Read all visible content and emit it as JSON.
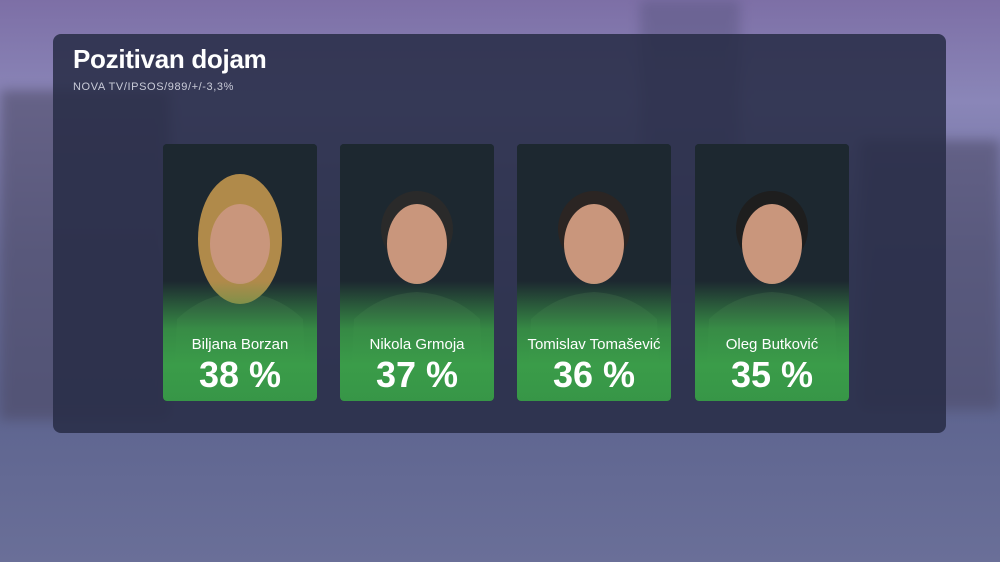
{
  "header": {
    "title": "Pozitivan dojam",
    "subtitle": "NOVA TV/IPSOS/989/+/-3,3%"
  },
  "colors": {
    "accent_green": "#3a9c49",
    "panel": "#282c46"
  },
  "chart_data": {
    "type": "bar",
    "title": "Pozitivan dojam",
    "subtitle": "NOVA TV/IPSOS/989/+/-3,3%",
    "categories": [
      "Biljana Borzan",
      "Nikola Grmoja",
      "Tomislav Tomašević",
      "Oleg Butković"
    ],
    "values": [
      38,
      37,
      36,
      35
    ],
    "labels": [
      "38 %",
      "37 %",
      "36 %",
      "35 %"
    ],
    "unit": "%"
  }
}
